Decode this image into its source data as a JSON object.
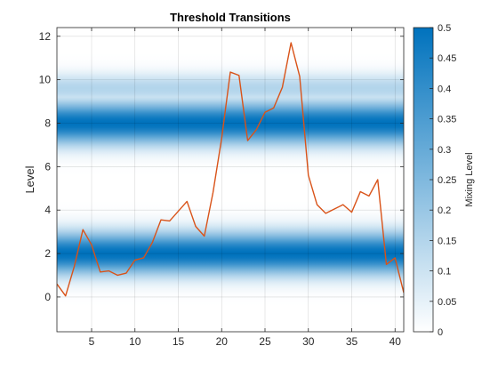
{
  "chart_data": {
    "type": "line",
    "title": "Threshold Transitions",
    "xlabel": "",
    "ylabel": "Level",
    "xlim": [
      1,
      41
    ],
    "ylim": [
      -1.6,
      12.4
    ],
    "xticks": [
      5,
      10,
      15,
      20,
      25,
      30,
      35,
      40
    ],
    "yticks": [
      0,
      2,
      4,
      6,
      8,
      10,
      12
    ],
    "grid": true,
    "legend": "none",
    "series": [
      {
        "color": "#d95319",
        "x": [
          1,
          2,
          3,
          4,
          5,
          6,
          7,
          8,
          9,
          10,
          11,
          12,
          13,
          14,
          15,
          16,
          17,
          18,
          19,
          20,
          21,
          22,
          23,
          24,
          25,
          26,
          27,
          28,
          29,
          30,
          31,
          32,
          33,
          34,
          35,
          36,
          37,
          38,
          39,
          40,
          41
        ],
        "y": [
          0.6,
          0.05,
          1.4,
          3.1,
          2.4,
          1.15,
          1.2,
          1.0,
          1.1,
          1.7,
          1.8,
          2.5,
          3.55,
          3.5,
          3.95,
          4.4,
          3.25,
          2.8,
          4.8,
          7.3,
          10.35,
          10.2,
          7.2,
          7.7,
          8.5,
          8.7,
          9.65,
          11.7,
          10.15,
          5.6,
          4.25,
          3.85,
          4.05,
          4.25,
          3.9,
          4.85,
          4.65,
          5.4,
          1.5,
          1.8,
          0.2
        ]
      }
    ],
    "background_bands": [
      {
        "center": 2,
        "width": 1.4,
        "peak": 0.5
      },
      {
        "center": 8,
        "width": 1.4,
        "peak": 0.5
      },
      {
        "center": 9.6,
        "width": 1.0,
        "peak": 0.15
      }
    ],
    "colorbar": {
      "label": "Mixing Level",
      "lim": [
        0,
        0.5
      ],
      "ticks": [
        "0",
        "0.05",
        "0.1",
        "0.15",
        "0.2",
        "0.25",
        "0.3",
        "0.35",
        "0.4",
        "0.45",
        "0.5"
      ],
      "color_low": "#ffffff",
      "color_high": "#0072bd"
    }
  }
}
